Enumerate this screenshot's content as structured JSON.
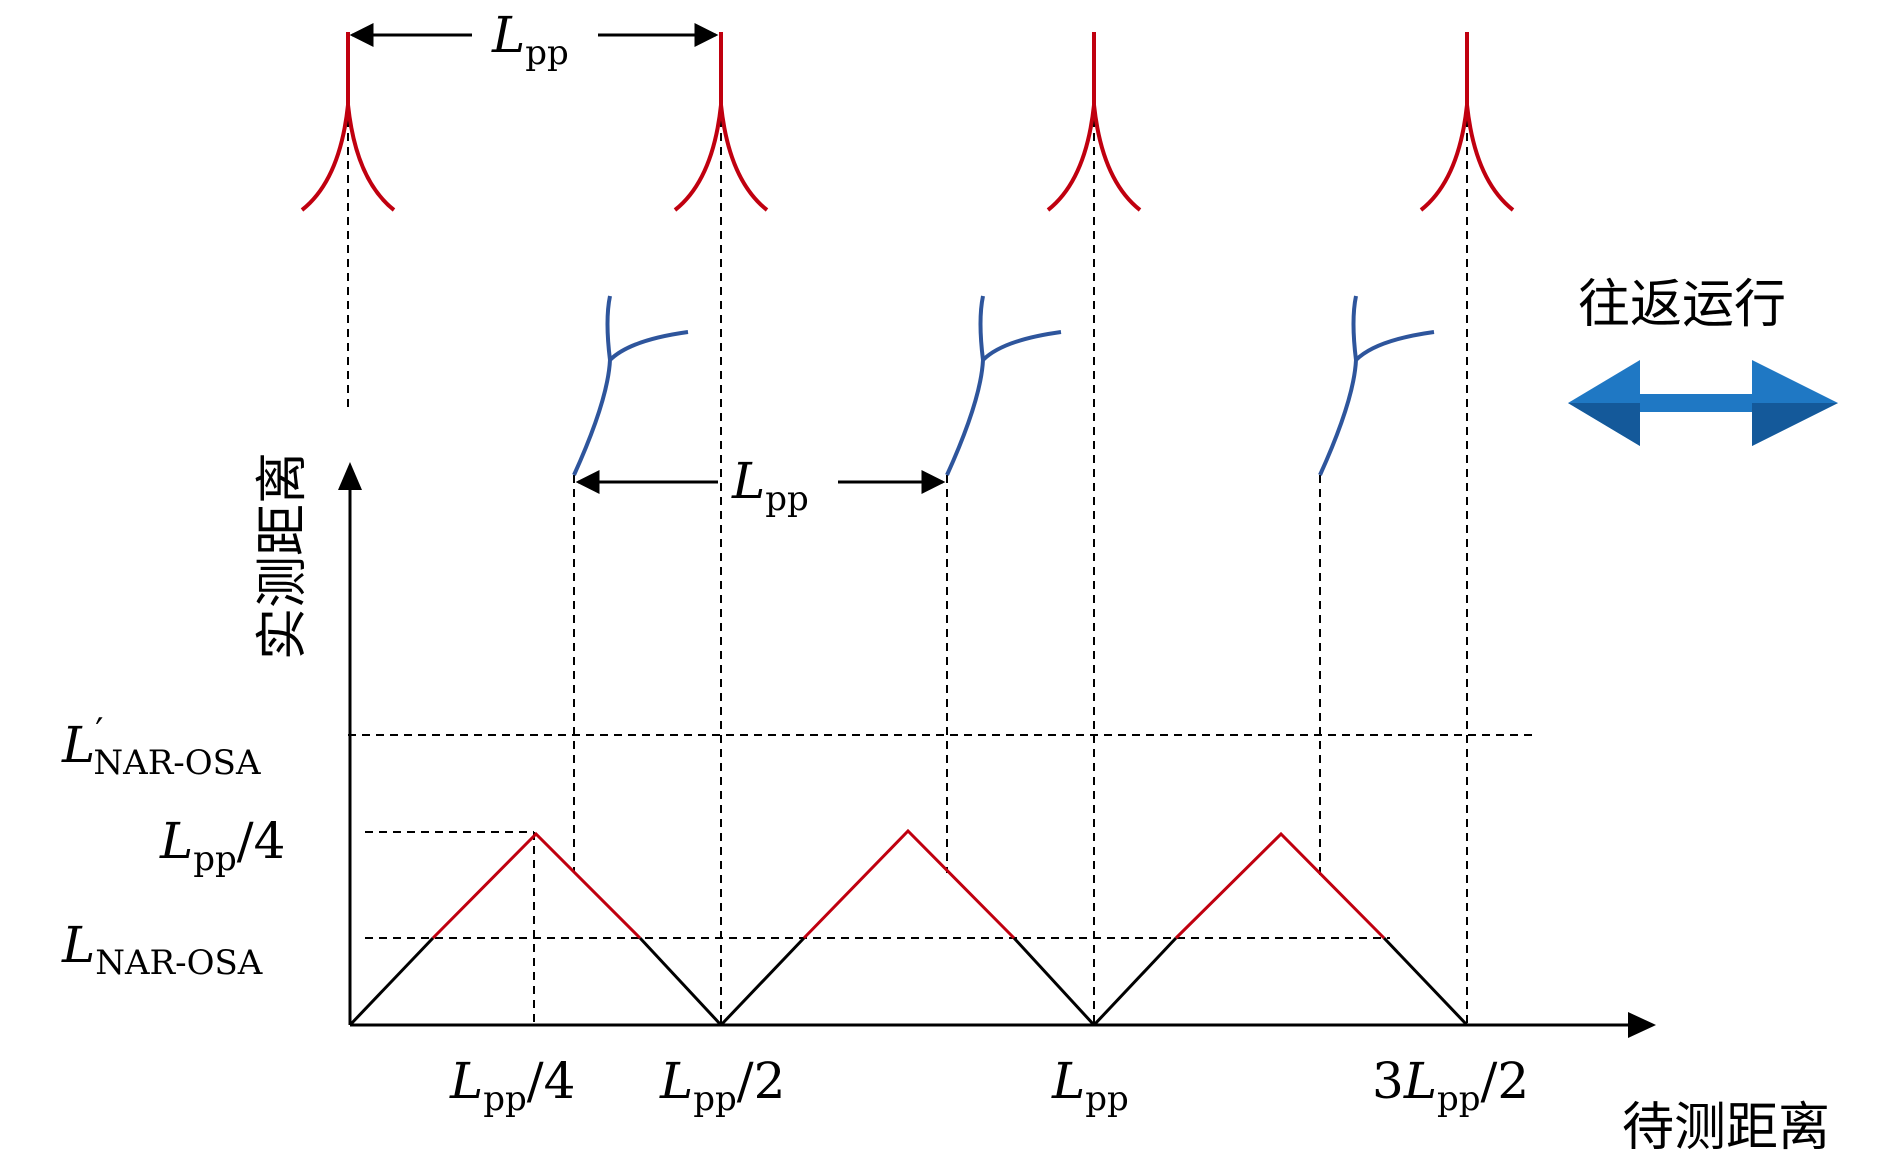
{
  "colors": {
    "axis": "#000000",
    "red_curve": "#c0000f",
    "blue_curve": "#2e559c",
    "arrow_blue": "#1f78c4",
    "dashed": "#000000"
  },
  "labels": {
    "y_axis_title": "实测距离",
    "x_axis_title": "待测距离",
    "motion_label": "往返运行",
    "top_spacing": {
      "main": "L",
      "sub": "pp"
    },
    "mid_spacing": {
      "main": "L",
      "sub": "pp"
    }
  },
  "y_ticks": [
    {
      "main": "L",
      "prime": "′",
      "sub": "NAR-OSA",
      "suffix": ""
    },
    {
      "main": "L",
      "prime": "",
      "sub": "pp",
      "suffix": "/4"
    },
    {
      "main": "L",
      "prime": "",
      "sub": "NAR-OSA",
      "suffix": ""
    }
  ],
  "x_ticks": [
    {
      "prefix": "",
      "main": "L",
      "sub": "pp",
      "suffix": "/4"
    },
    {
      "prefix": "",
      "main": "L",
      "sub": "pp",
      "suffix": "/2"
    },
    {
      "prefix": "",
      "main": "L",
      "sub": "pp",
      "suffix": ""
    },
    {
      "prefix": "3",
      "main": "L",
      "sub": "pp",
      "suffix": "/2"
    }
  ],
  "icons": {
    "motion_arrow": "double-headed-arrow-icon"
  }
}
